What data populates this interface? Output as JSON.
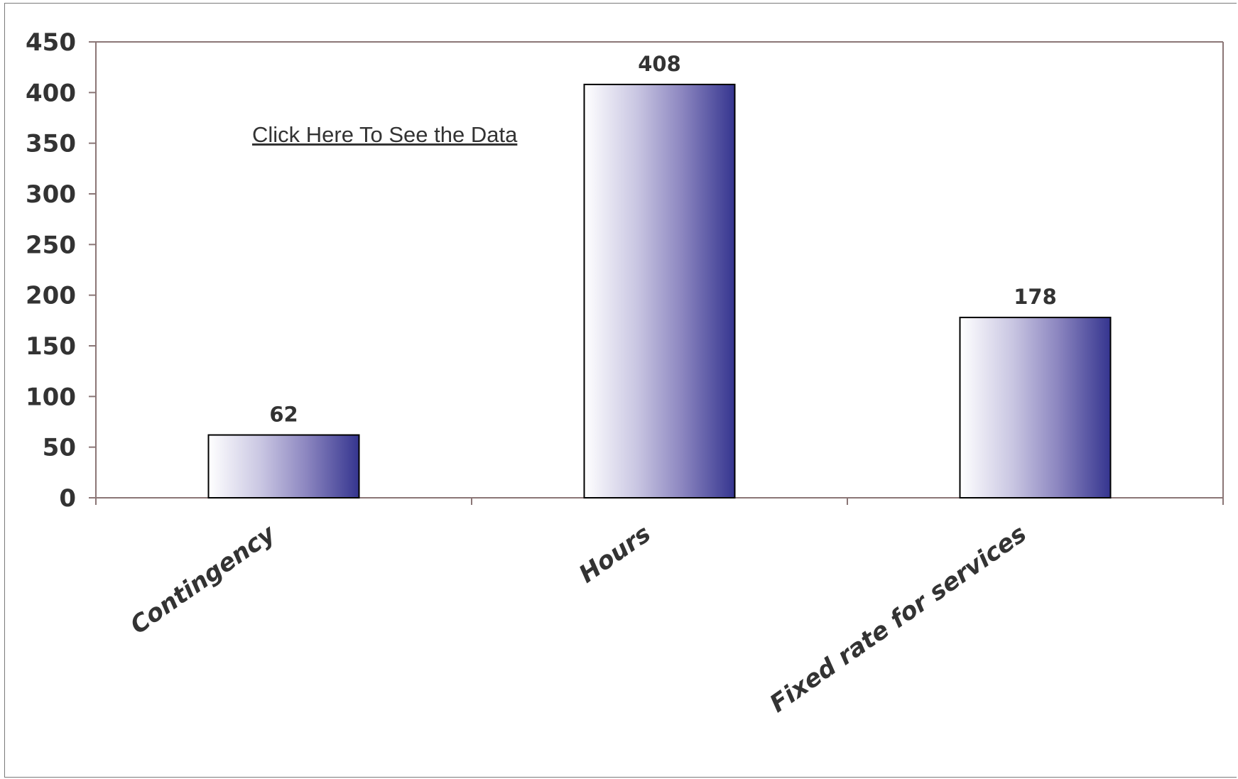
{
  "link": {
    "label": "Click Here To See the Data"
  },
  "colors": {
    "bar_start": "#ffffff",
    "bar_end": "#35358f",
    "axis": "#8b7676",
    "text": "#333333"
  },
  "chart_data": {
    "type": "bar",
    "title": "",
    "xlabel": "",
    "ylabel": "",
    "categories": [
      "Contingency",
      "Hours",
      "Fixed rate for services"
    ],
    "values": [
      62,
      408,
      178
    ],
    "data_labels": [
      "62",
      "408",
      "178"
    ],
    "ylim": [
      0,
      450
    ],
    "yticks": [
      0,
      50,
      100,
      150,
      200,
      250,
      300,
      350,
      400,
      450
    ],
    "ytick_labels": [
      "0",
      "50",
      "100",
      "150",
      "200",
      "250",
      "300",
      "350",
      "400",
      "450"
    ],
    "grid": false,
    "legend": "none"
  }
}
